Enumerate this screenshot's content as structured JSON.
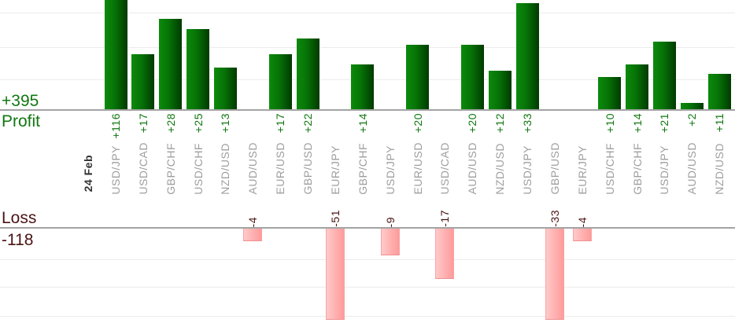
{
  "chart_data": {
    "type": "bar",
    "date_label": "24 Feb",
    "categories": [
      "USD/JPY",
      "USD/CAD",
      "GBP/CHF",
      "USD/CHF",
      "NZD/USD",
      "AUD/USD",
      "EUR/USD",
      "GBP/USD",
      "EUR/JPY",
      "GBP/CHF",
      "USD/JPY",
      "EUR/USD",
      "USD/CAD",
      "AUD/USD",
      "NZD/USD",
      "USD/JPY",
      "GBP/USD",
      "EUR/JPY",
      "USD/CHF",
      "GBP/CHF",
      "USD/JPY",
      "AUD/USD",
      "NZD/USD"
    ],
    "series": [
      {
        "name": "Profit",
        "total": 395,
        "total_label": "+395",
        "values": [
          116,
          17,
          28,
          25,
          13,
          null,
          17,
          22,
          null,
          14,
          null,
          20,
          null,
          20,
          12,
          33,
          null,
          null,
          10,
          14,
          21,
          2,
          11
        ],
        "value_labels": [
          "+116",
          "+17",
          "+28",
          "+25",
          "+13",
          null,
          "+17",
          "+22",
          null,
          "+14",
          null,
          "+20",
          null,
          "+20",
          "+12",
          "+33",
          null,
          null,
          "+10",
          "+14",
          "+21",
          "+2",
          "+11"
        ]
      },
      {
        "name": "Loss",
        "total": -118,
        "total_label": "-118",
        "values": [
          null,
          null,
          null,
          null,
          null,
          -4,
          null,
          null,
          -51,
          null,
          -9,
          null,
          -17,
          null,
          null,
          null,
          -33,
          -4,
          null,
          null,
          null,
          null,
          null
        ],
        "value_labels": [
          null,
          null,
          null,
          null,
          null,
          "-4",
          null,
          null,
          "-51",
          null,
          "-9",
          null,
          "-17",
          null,
          null,
          null,
          "-33",
          "-4",
          null,
          null,
          null,
          null,
          null
        ]
      }
    ],
    "gridline_interval": 10,
    "legend_position": "left",
    "grid": true,
    "axis_note": "profit bars grow up from upper baseline (tallest +116 clipped at top); loss bars hang from lower baseline (-51 and -33 clipped at plot bottom)"
  },
  "colors": {
    "profit_text": "#117711",
    "loss_text": "#4a1414",
    "pair_label": "#9e9e9e",
    "date": "#333333",
    "axis": "#a3a3a3",
    "grid": "#ececec",
    "pbar_a": "#0b8b0b",
    "pbar_b": "#013a01",
    "lbar_a": "#ffc9c9",
    "lbar_b": "#ff9a9a",
    "lbar_border": "#f6a6a6"
  }
}
